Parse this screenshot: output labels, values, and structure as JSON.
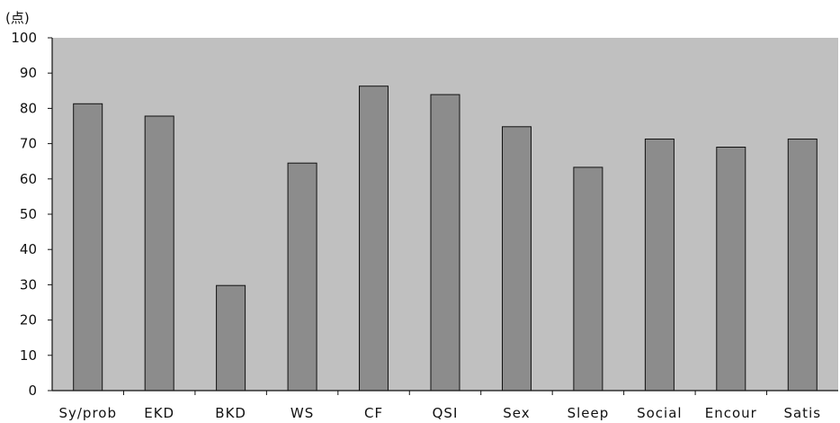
{
  "chart_data": {
    "type": "bar",
    "title": "",
    "xlabel": "",
    "ylabel": "",
    "y_unit_label": "(点)",
    "categories": [
      "Sy/prob",
      "EKD",
      "BKD",
      "WS",
      "CF",
      "QSI",
      "Sex",
      "Sleep",
      "Social",
      "Encour",
      "Satis"
    ],
    "values": [
      81.3,
      77.8,
      29.8,
      64.5,
      86.3,
      83.9,
      74.8,
      63.3,
      71.3,
      69.0,
      71.3
    ],
    "ylim": [
      0,
      100
    ],
    "yticks": [
      0,
      10,
      20,
      30,
      40,
      50,
      60,
      70,
      80,
      90,
      100
    ],
    "yticklabels": [
      "0",
      "10",
      "20",
      "30",
      "40",
      "50",
      "60",
      "70",
      "80",
      "90",
      "100"
    ],
    "grid": false,
    "legend": "none",
    "colors": {
      "plot_background": "#c0c0c0",
      "bar_fill": "#8c8c8c",
      "bar_stroke": "#111111",
      "axis": "#111111"
    }
  }
}
